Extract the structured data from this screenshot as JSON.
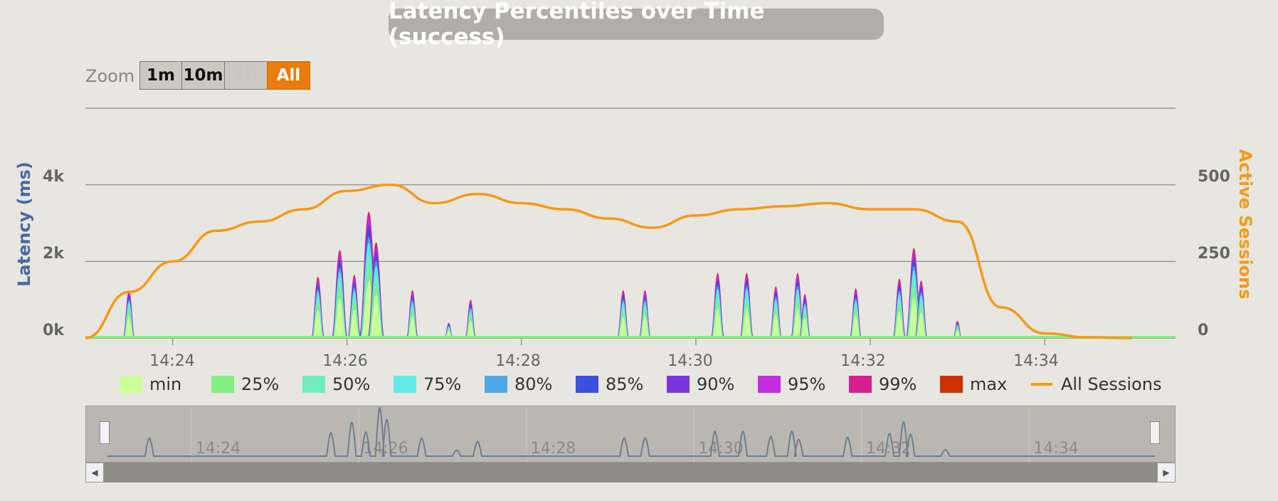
{
  "title": "Latency Percentiles over Time (success)",
  "zoom": {
    "label": "Zoom",
    "buttons": [
      {
        "label": "1m",
        "state": "normal"
      },
      {
        "label": "10m",
        "state": "normal"
      },
      {
        "label": "1h",
        "state": "disabled"
      },
      {
        "label": "All",
        "state": "active"
      }
    ]
  },
  "colors": {
    "background": "#e8e6e1",
    "sessions_line": "#f59a15",
    "latency_axis": "#4a6aa0",
    "zoom_active": "#ea7b0d"
  },
  "chart_data": {
    "type": "area",
    "title": "Latency Percentiles over Time (success)",
    "x_unit": "time (HH:MM)",
    "xlim": [
      "14:23",
      "14:35:30"
    ],
    "x_ticks": [
      "14:24",
      "14:26",
      "14:28",
      "14:30",
      "14:32",
      "14:34"
    ],
    "y_left": {
      "label": "Latency (ms)",
      "ticks": [
        "0k",
        "2k",
        "4k"
      ],
      "lim": [
        0,
        6000
      ]
    },
    "y_right": {
      "label": "Active Sessions",
      "ticks": [
        "0",
        "250",
        "500"
      ],
      "lim": [
        0,
        750
      ]
    },
    "grid": true,
    "legend_position": "bottom",
    "series": [
      {
        "name": "min",
        "color": "#ccff99",
        "axis": "left"
      },
      {
        "name": "25%",
        "color": "#7ff07f",
        "axis": "left"
      },
      {
        "name": "50%",
        "color": "#70eebb",
        "axis": "left"
      },
      {
        "name": "75%",
        "color": "#60eae8",
        "axis": "left"
      },
      {
        "name": "80%",
        "color": "#4ea8e8",
        "axis": "left"
      },
      {
        "name": "85%",
        "color": "#3b4fe0",
        "axis": "left"
      },
      {
        "name": "90%",
        "color": "#7a35e0",
        "axis": "left"
      },
      {
        "name": "95%",
        "color": "#c22ee0",
        "axis": "left"
      },
      {
        "name": "99%",
        "color": "#d81e8e",
        "axis": "left"
      },
      {
        "name": "max",
        "color": "#cc3300",
        "axis": "left"
      },
      {
        "name": "All Sessions",
        "color": "#f59a15",
        "axis": "right",
        "kind": "line",
        "x": [
          0,
          0.5,
          1,
          1.5,
          2,
          2.5,
          3,
          3.5,
          4,
          4.5,
          5,
          5.5,
          6,
          6.5,
          7,
          7.5,
          8,
          8.5,
          9,
          9.5,
          10,
          10.5,
          11,
          11.5,
          12
        ],
        "values": [
          0,
          150,
          250,
          350,
          380,
          420,
          480,
          500,
          440,
          470,
          440,
          420,
          390,
          360,
          400,
          420,
          430,
          440,
          420,
          420,
          380,
          100,
          15,
          2,
          0
        ]
      }
    ],
    "latency_peaks_ms": [
      {
        "t": "14:23:30",
        "max": 1250
      },
      {
        "t": "14:25:40",
        "max": 1600
      },
      {
        "t": "14:25:55",
        "max": 2300
      },
      {
        "t": "14:26:05",
        "max": 1650
      },
      {
        "t": "14:26:15",
        "max": 3300
      },
      {
        "t": "14:26:20",
        "max": 2500
      },
      {
        "t": "14:26:45",
        "max": 1250
      },
      {
        "t": "14:27:10",
        "max": 400
      },
      {
        "t": "14:27:25",
        "max": 1000
      },
      {
        "t": "14:29:10",
        "max": 1250
      },
      {
        "t": "14:29:25",
        "max": 1250
      },
      {
        "t": "14:30:15",
        "max": 1700
      },
      {
        "t": "14:30:35",
        "max": 1700
      },
      {
        "t": "14:30:55",
        "max": 1350
      },
      {
        "t": "14:31:10",
        "max": 1700
      },
      {
        "t": "14:31:15",
        "max": 1150
      },
      {
        "t": "14:31:50",
        "max": 1300
      },
      {
        "t": "14:32:20",
        "max": 1550
      },
      {
        "t": "14:32:30",
        "max": 2350
      },
      {
        "t": "14:32:35",
        "max": 1500
      },
      {
        "t": "14:33:00",
        "max": 450
      }
    ]
  },
  "navigator": {
    "x_ticks": [
      "14:24",
      "14:26",
      "14:28",
      "14:30",
      "14:32",
      "14:34"
    ]
  }
}
